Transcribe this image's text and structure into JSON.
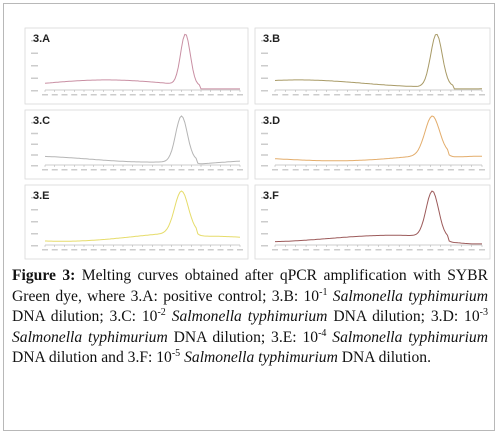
{
  "panels": [
    {
      "label": "3.A",
      "color": "#c98fa3"
    },
    {
      "label": "3.B",
      "color": "#a89a66"
    },
    {
      "label": "3.C",
      "color": "#b5b5b5"
    },
    {
      "label": "3.D",
      "color": "#e3ad6c"
    },
    {
      "label": "3.E",
      "color": "#e6dc6a"
    },
    {
      "label": "3.F",
      "color": "#9c5a5a"
    }
  ],
  "caption": {
    "parts": [
      "Figure 3:",
      "Melting curves obtained after qPCR amplification with SYBR Green dye, where 3.A: positive control; 3.B: 10",
      "-1",
      "Salmonella typhimurium",
      "DNA dilution; 3.C: 10",
      "-2",
      "Salmonella typhimurium",
      "DNA dilution; 3.D: 10",
      "-3",
      "Salmonella typhimurium",
      "DNA dilution; 3.E: 10",
      "-4",
      "Salmonella typhimurium",
      "DNA dilution and 3.F: 10",
      "-5",
      "Salmonella typhimurium",
      "DNA dilution."
    ]
  }
}
